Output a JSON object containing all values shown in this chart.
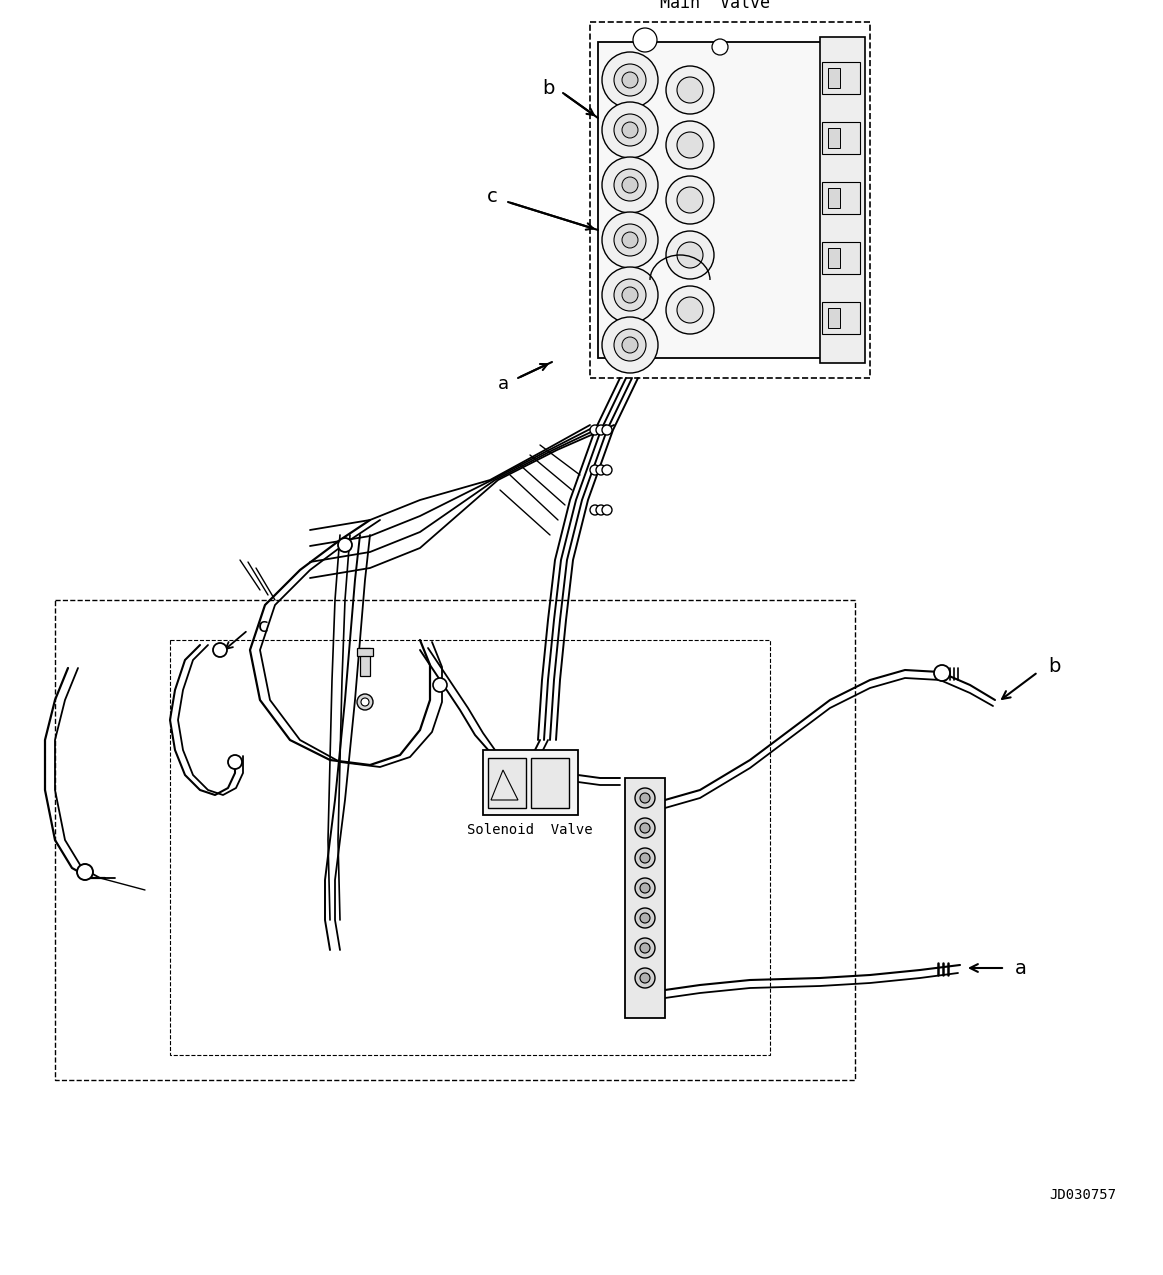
{
  "background_color": "#ffffff",
  "part_number": "JD030757",
  "labels": {
    "main_valve": "Main  Valve",
    "solenoid_valve": "Solenoid  Valve",
    "a": "a",
    "b": "b",
    "c": "c"
  },
  "figure_width": 11.63,
  "figure_height": 12.75,
  "dpi": 100
}
